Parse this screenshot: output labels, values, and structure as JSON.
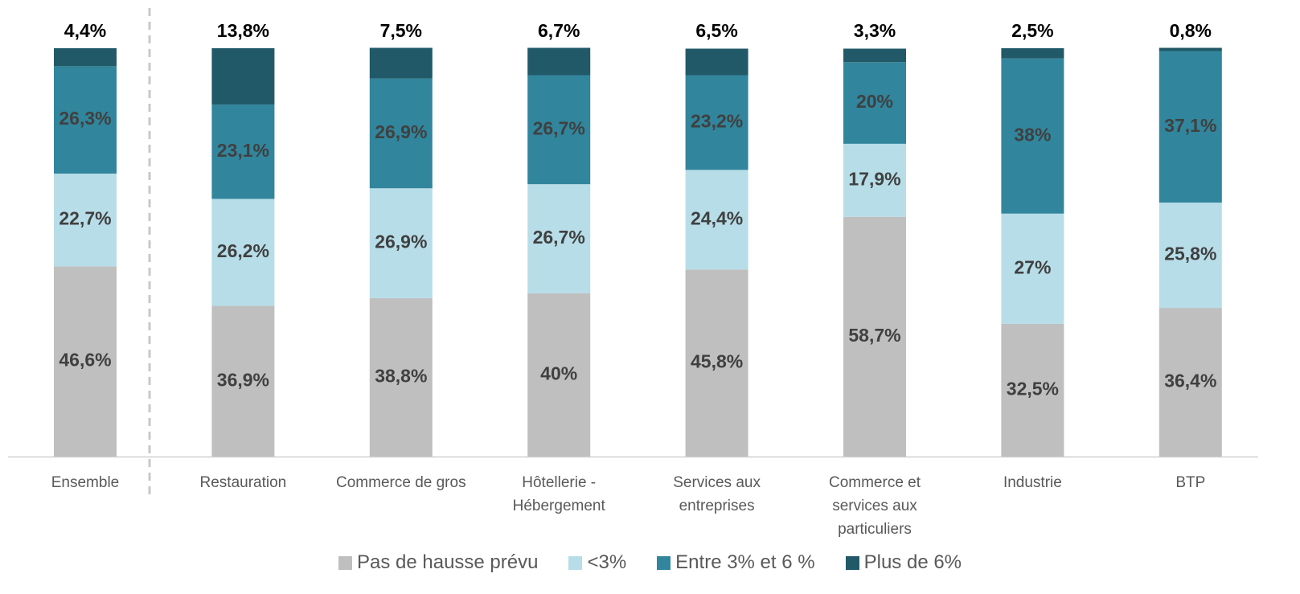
{
  "chart_data": {
    "type": "stacked_bar",
    "categories": [
      "Ensemble",
      "Restauration",
      "Commerce de gros",
      "Hôtellerie - Hébergement",
      "Services aux entreprises",
      "Commerce et services aux particuliers",
      "Industrie",
      "BTP"
    ],
    "ylim": [
      0,
      100
    ],
    "series": [
      {
        "name": "Pas de hausse prévu",
        "color": "#bfbfbf",
        "values": [
          46.6,
          36.9,
          38.8,
          40,
          45.8,
          58.7,
          32.5,
          36.4
        ],
        "value_labels": [
          "46,6%",
          "36,9%",
          "38,8%",
          "40%",
          "45,8%",
          "58,7%",
          "32,5%",
          "36,4%"
        ]
      },
      {
        "name": "<3%",
        "color": "#b7dde8",
        "values": [
          22.7,
          26.2,
          26.9,
          26.7,
          24.4,
          17.9,
          27,
          25.8
        ],
        "value_labels": [
          "22,7%",
          "26,2%",
          "26,9%",
          "26,7%",
          "24,4%",
          "17,9%",
          "27%",
          "25,8%"
        ]
      },
      {
        "name": "Entre 3% et 6 %",
        "color": "#31859c",
        "values": [
          26.3,
          23.1,
          26.9,
          26.7,
          23.2,
          20,
          38,
          37.1
        ],
        "value_labels": [
          "26,3%",
          "23,1%",
          "26,9%",
          "26,7%",
          "23,2%",
          "20%",
          "38%",
          "37,1%"
        ]
      },
      {
        "name": "Plus de 6%",
        "color": "#215968",
        "values": [
          4.4,
          13.8,
          7.5,
          6.7,
          6.5,
          3.3,
          2.5,
          0.8
        ],
        "value_labels": [
          "4,4%",
          "13,8%",
          "7,5%",
          "6,7%",
          "6,5%",
          "3,3%",
          "2,5%",
          "0,8%"
        ]
      }
    ]
  }
}
